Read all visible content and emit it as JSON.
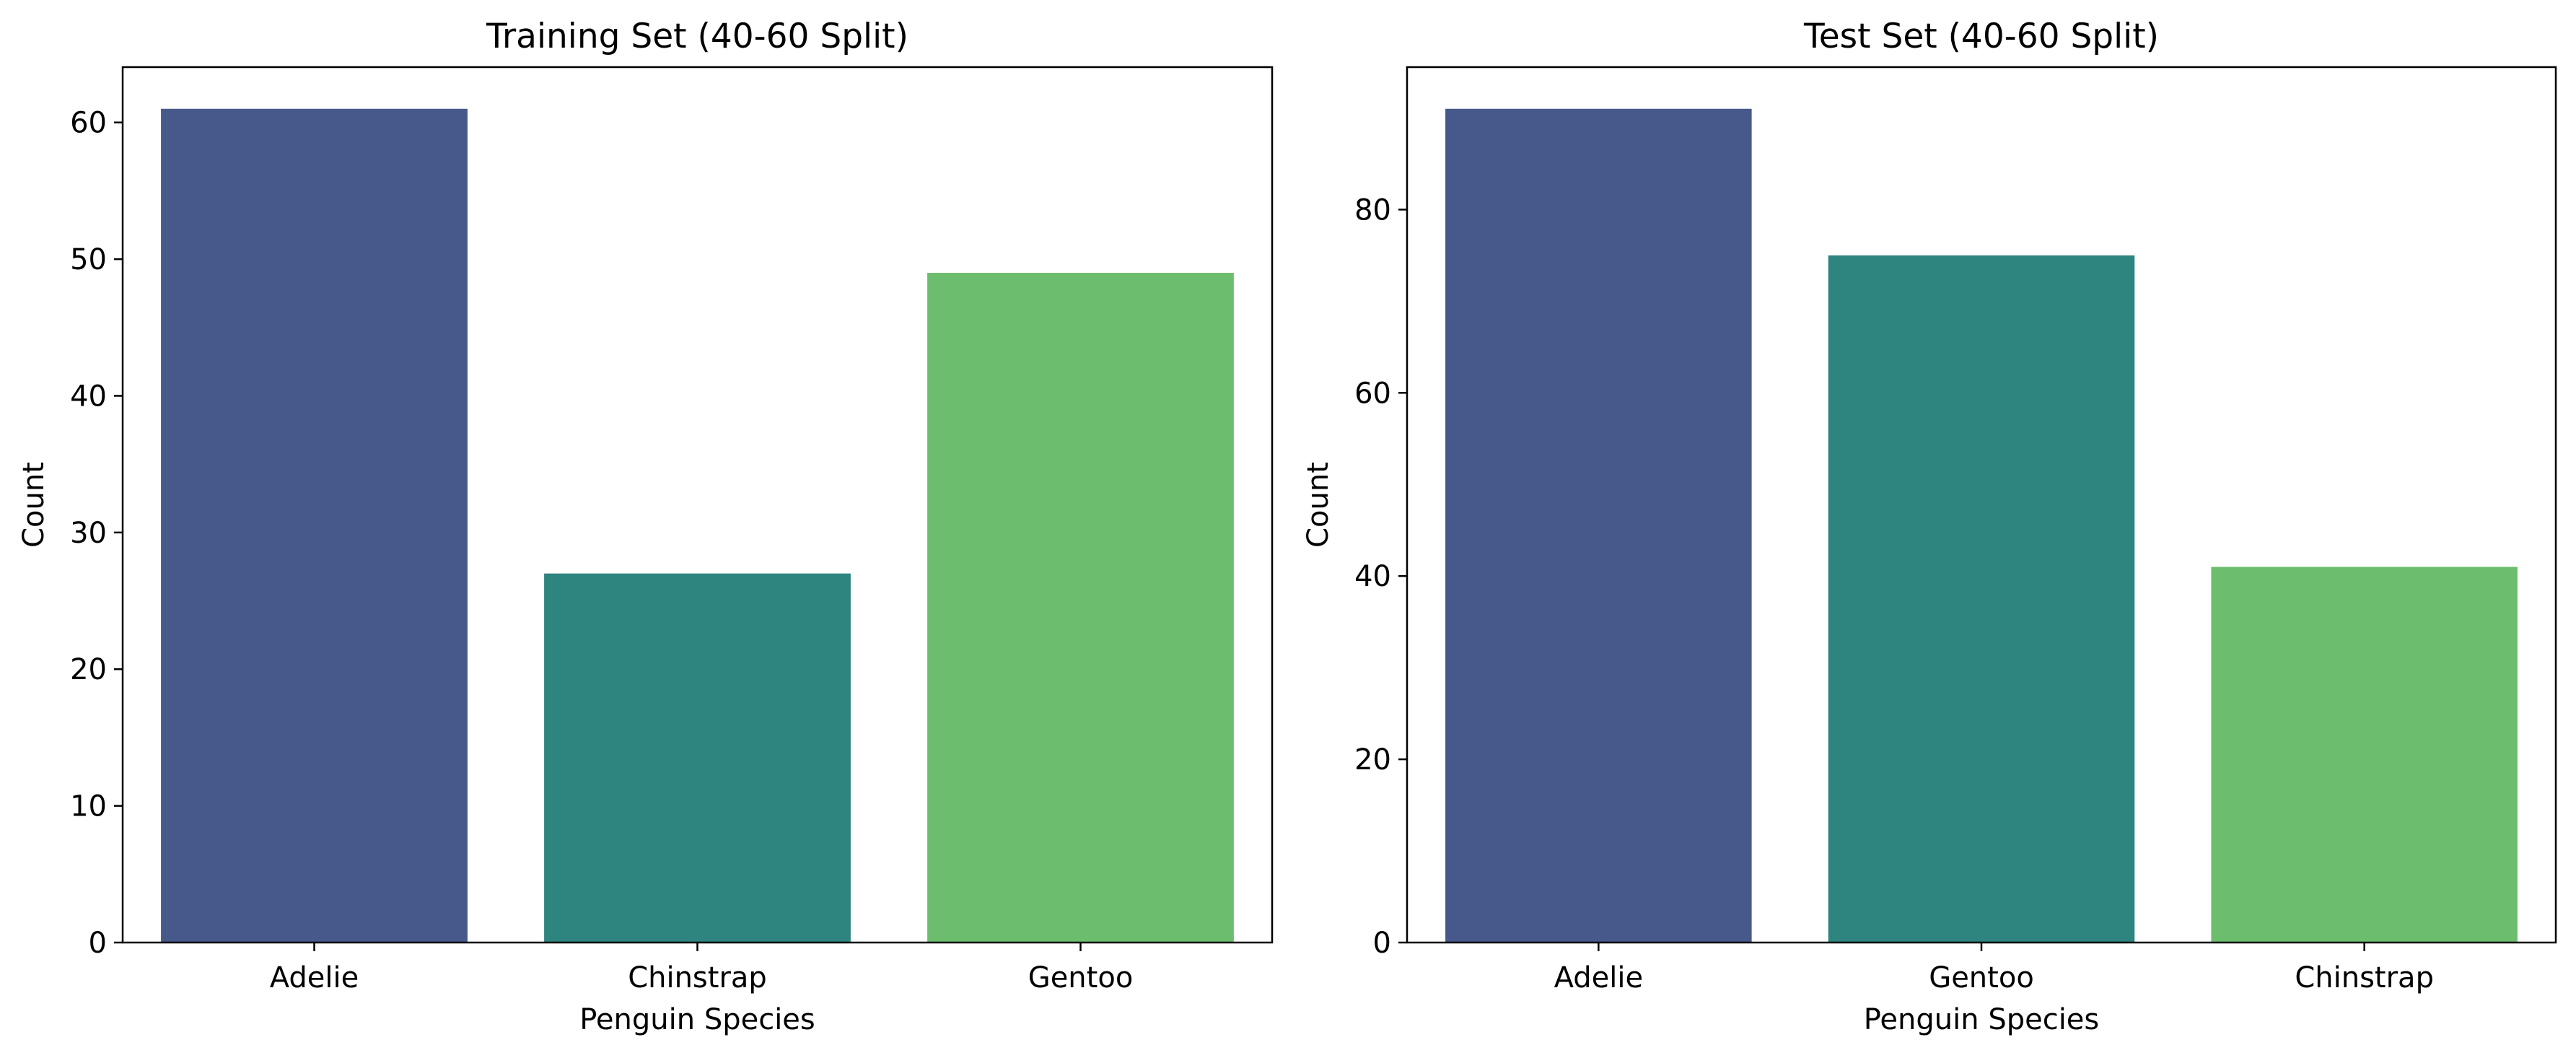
{
  "chart_data": [
    {
      "type": "bar",
      "title": "Training Set (40-60 Split)",
      "xlabel": "Penguin Species",
      "ylabel": "Count",
      "categories": [
        "Adelie",
        "Chinstrap",
        "Gentoo"
      ],
      "values": [
        61,
        27,
        49
      ],
      "colors": [
        "#46598a",
        "#2e847e",
        "#6dbd6e"
      ],
      "ylim": [
        0,
        64.05
      ],
      "yticks": [
        0,
        10,
        20,
        30,
        40,
        50,
        60
      ],
      "grid": false,
      "legend": "none"
    },
    {
      "type": "bar",
      "title": "Test Set (40-60 Split)",
      "xlabel": "Penguin Species",
      "ylabel": "Count",
      "categories": [
        "Adelie",
        "Gentoo",
        "Chinstrap"
      ],
      "values": [
        91,
        75,
        41
      ],
      "colors": [
        "#46598a",
        "#2e847e",
        "#6dbd6e"
      ],
      "ylim": [
        0,
        95.55
      ],
      "yticks": [
        0,
        20,
        40,
        60,
        80
      ],
      "grid": false,
      "legend": "none"
    }
  ]
}
